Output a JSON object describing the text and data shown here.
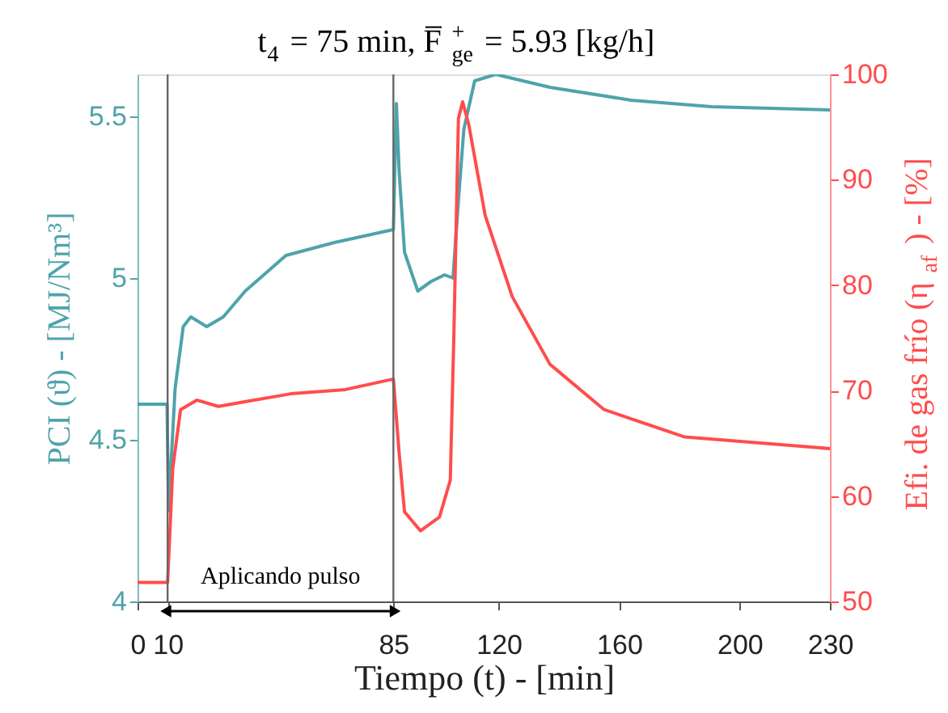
{
  "chart_data": {
    "type": "line",
    "title": "t$_{4}$ = 75 min, F̅$^{+}$$_{ge}$ = 5.93 [kg/h]",
    "xlabel": "Tiempo (t) - [min]",
    "ylabel": "PCI (ϑ) - [MJ/Nm³]",
    "y2label": "Efi. de gas frío (η$_{af}$) - [%]",
    "xlim": [
      0,
      230
    ],
    "xticks": [
      0,
      10,
      85,
      120,
      160,
      200,
      230
    ],
    "ylim": [
      4,
      5.63
    ],
    "yticks": [
      4,
      4.5,
      5,
      5.5
    ],
    "y2lim": [
      50,
      100
    ],
    "y2ticks": [
      50,
      60,
      70,
      80,
      90,
      100
    ],
    "grid": false,
    "line_style": "solid",
    "series": [
      {
        "color": "#4fa3ab",
        "x": [
          0,
          9.8,
          10.3,
          12.5,
          15.2,
          17.7,
          23,
          28.5,
          35.8,
          49.3,
          65.4,
          85,
          86,
          86.9,
          88.7,
          93.1,
          97.6,
          102,
          104.8,
          106.6,
          108.4,
          112,
          119,
          137,
          164,
          190.8,
          230
        ],
        "values": [
          4.61,
          4.61,
          4.28,
          4.66,
          4.85,
          4.88,
          4.85,
          4.88,
          4.96,
          5.07,
          5.11,
          5.15,
          5.54,
          5.33,
          5.08,
          4.96,
          4.99,
          5.01,
          5.0,
          5.24,
          5.46,
          5.61,
          5.63,
          5.59,
          5.55,
          5.53,
          5.52
        ]
      },
      {
        "color": "#ff4d4d",
        "axis": "y2",
        "x": [
          0,
          10,
          11.7,
          14.3,
          19.7,
          26.9,
          36.7,
          51,
          69,
          85,
          86.9,
          88.7,
          94,
          100.3,
          103.9,
          105.1,
          106.6,
          108,
          110,
          115.5,
          124.5,
          137,
          155,
          181.8,
          230
        ],
        "values": [
          51.8,
          51.8,
          62.6,
          68.2,
          69.1,
          68.5,
          69.0,
          69.7,
          70.1,
          71.1,
          64.1,
          58.5,
          56.7,
          58.0,
          61.5,
          75.4,
          95.8,
          97.4,
          95.3,
          86.6,
          78.9,
          72.5,
          68.2,
          65.6,
          64.5
        ]
      }
    ],
    "ref_lines": [
      {
        "axis": "x",
        "value": 10,
        "color": "#666666"
      },
      {
        "axis": "x",
        "value": 85,
        "color": "#666666"
      }
    ],
    "annotations": [
      "Aplicando pulso"
    ]
  }
}
